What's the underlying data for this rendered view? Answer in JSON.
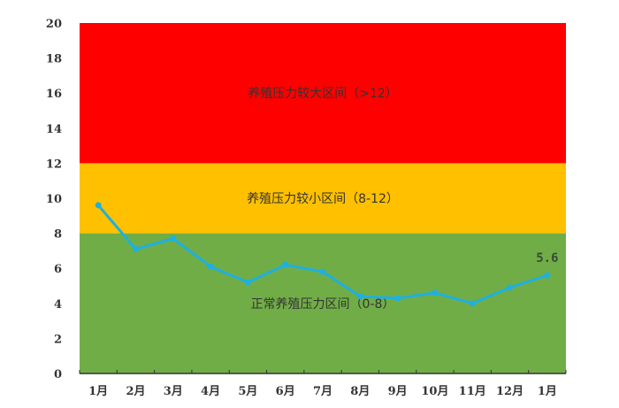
{
  "chart_data": {
    "type": "line",
    "title": "",
    "xlabel": "",
    "ylabel": "",
    "ylim": [
      0,
      20
    ],
    "yticks": [
      "0",
      "2",
      "4",
      "6",
      "8",
      "10",
      "12",
      "14",
      "16",
      "18",
      "20"
    ],
    "categories": [
      "1月",
      "2月",
      "3月",
      "4月",
      "5月",
      "6月",
      "7月",
      "8月",
      "9月",
      "10月",
      "11月",
      "12月",
      "1月"
    ],
    "series": [
      {
        "values": [
          9.6,
          7.1,
          7.7,
          6.1,
          5.2,
          6.2,
          5.8,
          4.4,
          4.3,
          4.6,
          4.0,
          4.9,
          5.6
        ],
        "color": "#1eb0e0"
      }
    ],
    "last_label": "5.6",
    "grid": false,
    "bands": [
      {
        "from": 0,
        "to": 8,
        "color": "#70ad47",
        "label": "正常养殖压力区间（0-8）"
      },
      {
        "from": 8,
        "to": 12,
        "color": "#ffc000",
        "label": "养殖压力较小区间（8-12）"
      },
      {
        "from": 12,
        "to": 20,
        "color": "#ff0000",
        "label": "养殖压力较大区间（>12）"
      }
    ]
  }
}
